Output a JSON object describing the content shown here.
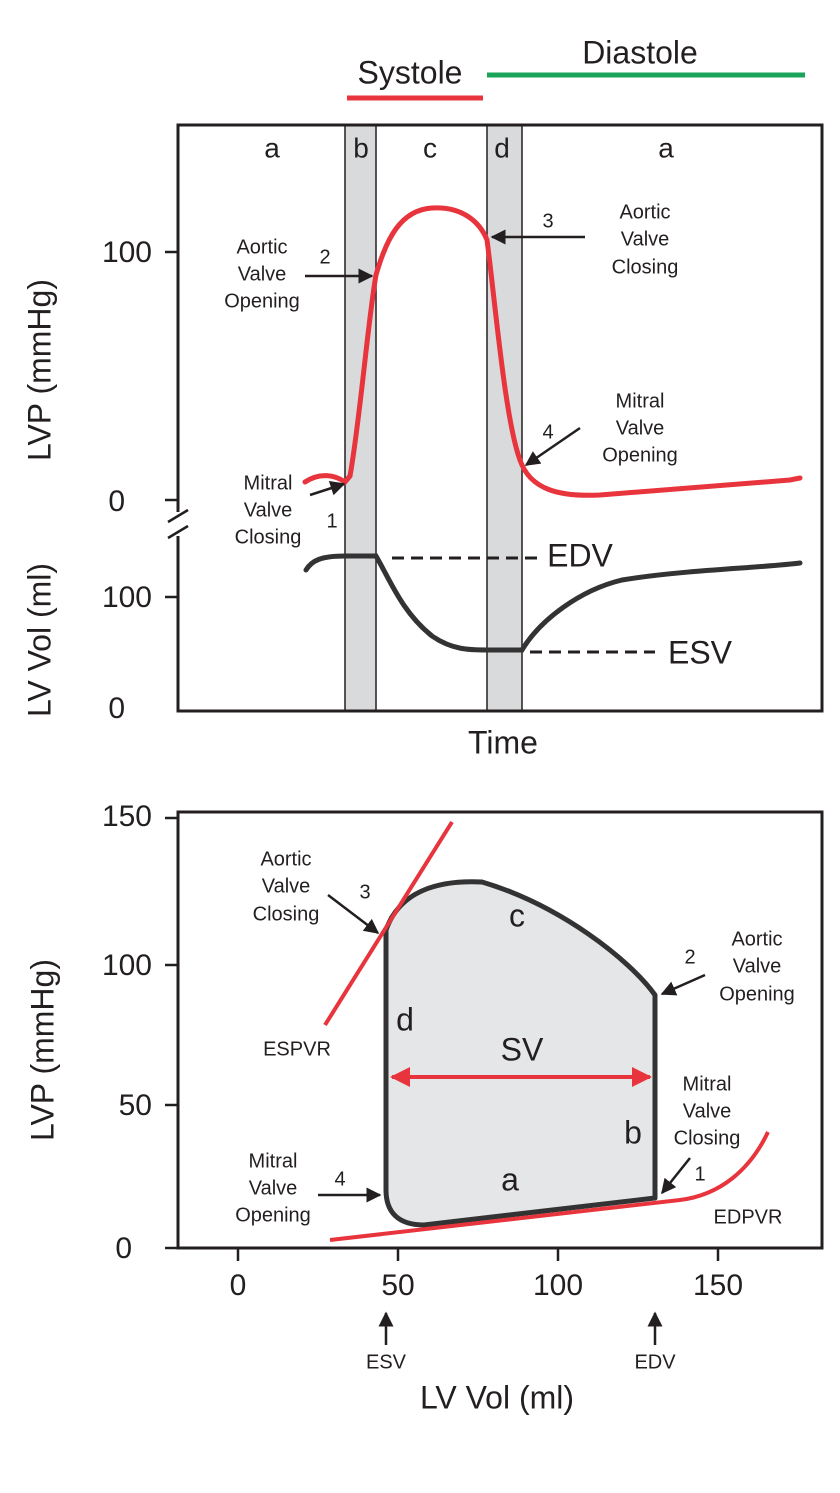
{
  "top_panel": {
    "phases": {
      "systole": "Systole",
      "diastole": "Diastole"
    },
    "bands": [
      "a",
      "b",
      "c",
      "d",
      "a"
    ],
    "lvp_axis": {
      "label": "LVP (mmHg)",
      "ticks": [
        100,
        0
      ]
    },
    "vol_axis": {
      "label": "LV Vol (ml)",
      "ticks": [
        100,
        0
      ]
    },
    "x_axis_label": "Time",
    "annotations": {
      "aortic_opening": {
        "number": "2",
        "lines": [
          "Aortic",
          "Valve",
          "Opening"
        ]
      },
      "aortic_closing": {
        "number": "3",
        "lines": [
          "Aortic",
          "Valve",
          "Closing"
        ]
      },
      "mitral_opening": {
        "number": "4",
        "lines": [
          "Mitral",
          "Valve",
          "Opening"
        ]
      },
      "mitral_closing": {
        "number": "1",
        "lines": [
          "Mitral",
          "Valve",
          "Closing"
        ]
      }
    },
    "edv": "EDV",
    "esv": "ESV"
  },
  "bottom_panel": {
    "y_axis": {
      "label": "LVP (mmHg)",
      "ticks": [
        150,
        100,
        50,
        0
      ]
    },
    "x_axis": {
      "label": "LV Vol (ml)",
      "ticks": [
        0,
        50,
        100,
        150
      ]
    },
    "loop_labels": {
      "a": "a",
      "b": "b",
      "c": "c",
      "d": "d",
      "sv": "SV"
    },
    "espvr": "ESPVR",
    "edpvr": "EDPVR",
    "annotations": {
      "aortic_closing": {
        "number": "3",
        "lines": [
          "Aortic",
          "Valve",
          "Closing"
        ]
      },
      "aortic_opening": {
        "number": "2",
        "lines": [
          "Aortic",
          "Valve",
          "Opening"
        ]
      },
      "mitral_closing": {
        "number": "1",
        "lines": [
          "Mitral",
          "Valve",
          "Closing"
        ]
      },
      "mitral_opening": {
        "number": "4",
        "lines": [
          "Mitral",
          "Valve",
          "Opening"
        ]
      }
    },
    "esv": "ESV",
    "edv": "EDV"
  }
}
